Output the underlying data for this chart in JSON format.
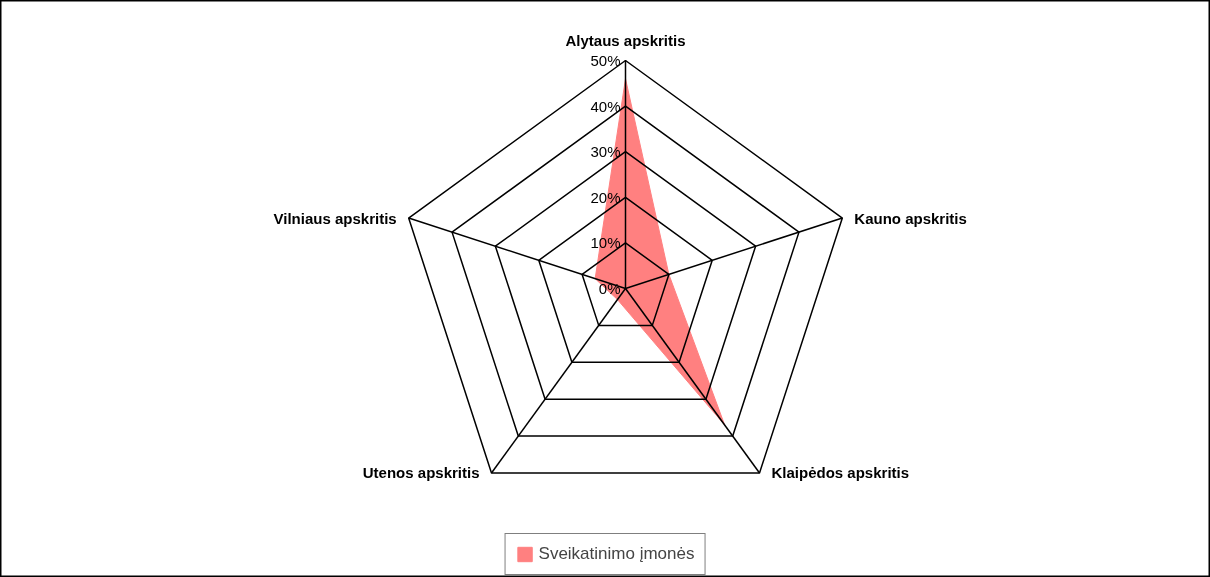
{
  "chart_data": {
    "type": "radar",
    "categories": [
      "Alytaus apskritis",
      "Kauno apskritis",
      "Klaipėdos apskritis",
      "Utenos apskritis",
      "Vilniaus apskritis"
    ],
    "series": [
      {
        "name": "Sveikatinimo įmonės",
        "color": "#ff8080",
        "values": [
          46,
          10,
          37,
          3,
          7
        ]
      }
    ],
    "ylim": [
      0,
      50
    ],
    "yticks": [
      {
        "value": 0,
        "label": "0%"
      },
      {
        "value": 10,
        "label": "10%"
      },
      {
        "value": 20,
        "label": "20%"
      },
      {
        "value": 30,
        "label": "30%"
      },
      {
        "value": 40,
        "label": "40%"
      },
      {
        "value": 50,
        "label": "50%"
      }
    ],
    "legend": "bottom"
  }
}
